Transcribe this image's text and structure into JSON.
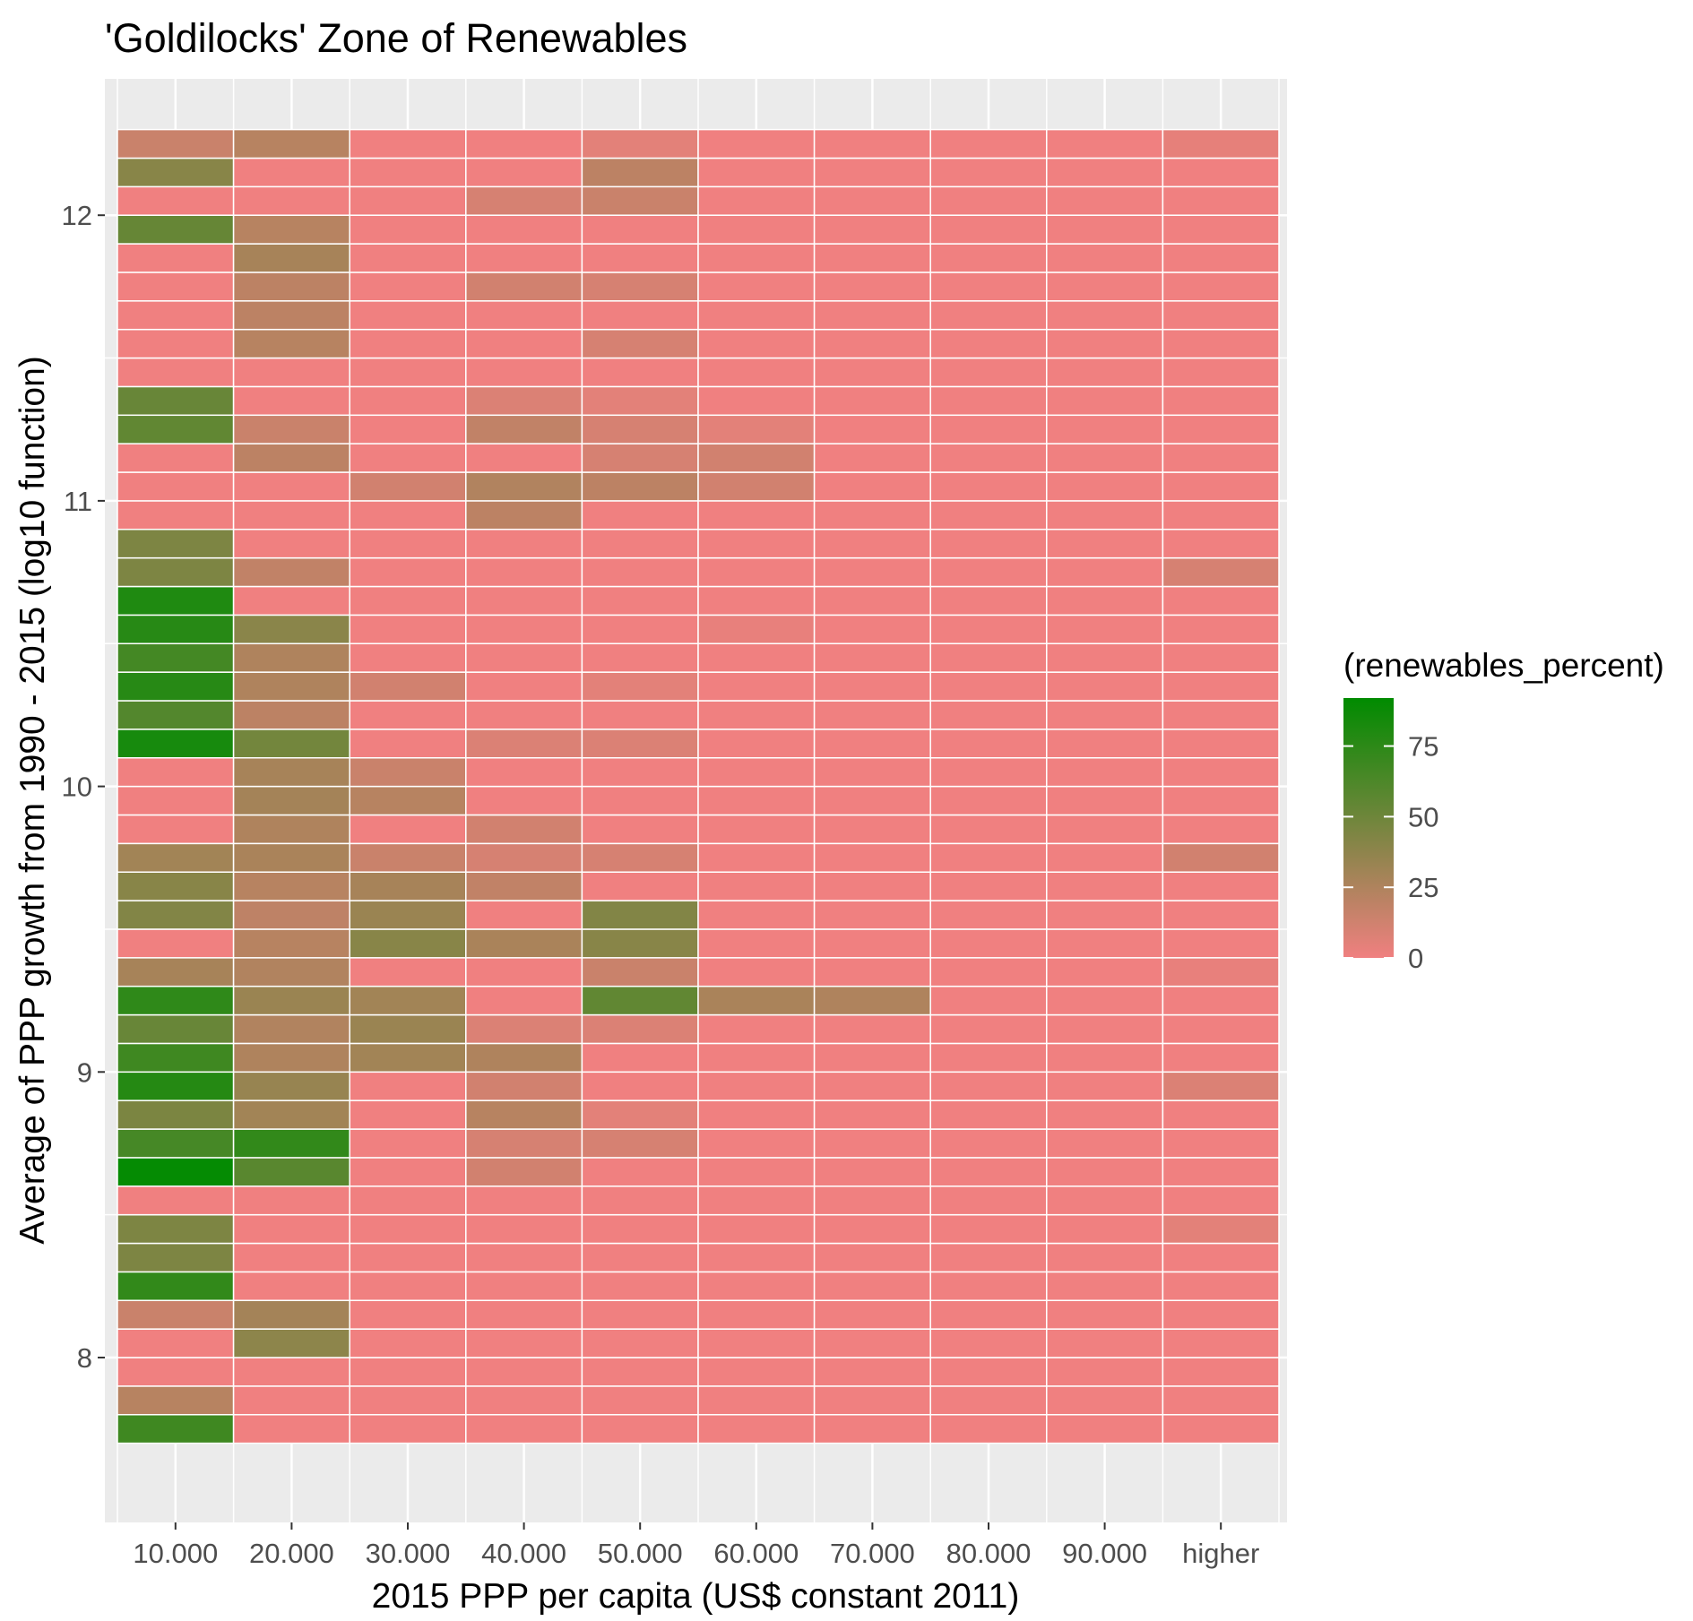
{
  "chart_data": {
    "type": "heatmap",
    "title": "'Goldilocks' Zone of Renewables",
    "xlabel": "2015 PPP per capita (US$ constant 2011)",
    "ylabel": "Average of PPP growth from 1990 - 2015 (log10 function)",
    "x_categories": [
      "10.000",
      "20.000",
      "30.000",
      "40.000",
      "50.000",
      "60.000",
      "70.000",
      "80.000",
      "90.000",
      "higher"
    ],
    "y_ticks": [
      8,
      9,
      10,
      11,
      12
    ],
    "ylim": [
      7.52,
      12.5
    ],
    "y_rows_bottom": 7.7,
    "y_row_height": 0.1,
    "grid": true,
    "legend": {
      "title": "(renewables_percent)",
      "position": "right",
      "ticks": [
        0,
        25,
        50,
        75
      ],
      "min": 0,
      "max": 92,
      "low_color": "#F08080",
      "high_color": "#008B00"
    },
    "cells": [
      [
        0,
        0,
        68
      ],
      [
        0,
        1,
        22
      ],
      [
        0,
        4,
        15
      ],
      [
        0,
        5,
        73
      ],
      [
        0,
        6,
        44
      ],
      [
        0,
        7,
        44
      ],
      [
        0,
        9,
        90
      ],
      [
        0,
        10,
        65
      ],
      [
        0,
        11,
        45
      ],
      [
        0,
        12,
        78
      ],
      [
        0,
        13,
        68
      ],
      [
        0,
        14,
        52
      ],
      [
        0,
        15,
        74
      ],
      [
        0,
        16,
        28
      ],
      [
        0,
        18,
        42
      ],
      [
        0,
        19,
        40
      ],
      [
        0,
        20,
        30
      ],
      [
        0,
        24,
        83
      ],
      [
        0,
        25,
        60
      ],
      [
        0,
        26,
        77
      ],
      [
        0,
        27,
        66
      ],
      [
        0,
        28,
        77
      ],
      [
        0,
        29,
        80
      ],
      [
        0,
        30,
        44
      ],
      [
        0,
        31,
        44
      ],
      [
        0,
        35,
        55
      ],
      [
        0,
        36,
        52
      ],
      [
        0,
        42,
        53
      ],
      [
        0,
        44,
        40
      ],
      [
        0,
        45,
        15
      ],
      [
        1,
        3,
        38
      ],
      [
        1,
        4,
        29
      ],
      [
        1,
        9,
        58
      ],
      [
        1,
        10,
        73
      ],
      [
        1,
        11,
        30
      ],
      [
        1,
        12,
        34
      ],
      [
        1,
        13,
        25
      ],
      [
        1,
        14,
        24
      ],
      [
        1,
        15,
        33
      ],
      [
        1,
        16,
        24
      ],
      [
        1,
        17,
        22
      ],
      [
        1,
        18,
        19
      ],
      [
        1,
        19,
        22
      ],
      [
        1,
        20,
        27
      ],
      [
        1,
        21,
        25
      ],
      [
        1,
        22,
        29
      ],
      [
        1,
        23,
        28
      ],
      [
        1,
        24,
        48
      ],
      [
        1,
        25,
        20
      ],
      [
        1,
        26,
        25
      ],
      [
        1,
        27,
        25
      ],
      [
        1,
        28,
        39
      ],
      [
        1,
        30,
        18
      ],
      [
        1,
        34,
        20
      ],
      [
        1,
        35,
        15
      ],
      [
        1,
        38,
        22
      ],
      [
        1,
        39,
        20
      ],
      [
        1,
        40,
        20
      ],
      [
        1,
        41,
        28
      ],
      [
        1,
        42,
        22
      ],
      [
        1,
        45,
        22
      ],
      [
        2,
        13,
        30
      ],
      [
        2,
        14,
        33
      ],
      [
        2,
        15,
        30
      ],
      [
        2,
        17,
        40
      ],
      [
        2,
        18,
        33
      ],
      [
        2,
        19,
        28
      ],
      [
        2,
        20,
        15
      ],
      [
        2,
        22,
        22
      ],
      [
        2,
        23,
        15
      ],
      [
        2,
        26,
        12
      ],
      [
        2,
        33,
        12
      ],
      [
        3,
        9,
        12
      ],
      [
        3,
        10,
        10
      ],
      [
        3,
        11,
        22
      ],
      [
        3,
        12,
        12
      ],
      [
        3,
        13,
        25
      ],
      [
        3,
        14,
        8
      ],
      [
        3,
        17,
        27
      ],
      [
        3,
        19,
        18
      ],
      [
        3,
        20,
        10
      ],
      [
        3,
        21,
        12
      ],
      [
        3,
        24,
        8
      ],
      [
        3,
        32,
        20
      ],
      [
        3,
        33,
        24
      ],
      [
        3,
        35,
        18
      ],
      [
        3,
        36,
        8
      ],
      [
        3,
        40,
        12
      ],
      [
        3,
        43,
        10
      ],
      [
        4,
        10,
        10
      ],
      [
        4,
        11,
        5
      ],
      [
        4,
        14,
        8
      ],
      [
        4,
        15,
        55
      ],
      [
        4,
        16,
        15
      ],
      [
        4,
        17,
        40
      ],
      [
        4,
        18,
        42
      ],
      [
        4,
        20,
        10
      ],
      [
        4,
        24,
        8
      ],
      [
        4,
        26,
        5
      ],
      [
        4,
        33,
        20
      ],
      [
        4,
        34,
        10
      ],
      [
        4,
        35,
        10
      ],
      [
        4,
        36,
        5
      ],
      [
        4,
        38,
        10
      ],
      [
        4,
        40,
        10
      ],
      [
        4,
        43,
        15
      ],
      [
        4,
        44,
        20
      ],
      [
        4,
        45,
        5
      ],
      [
        5,
        33,
        12
      ],
      [
        5,
        34,
        12
      ],
      [
        5,
        15,
        27
      ],
      [
        5,
        28,
        3
      ],
      [
        5,
        35,
        5
      ],
      [
        6,
        15,
        25
      ],
      [
        9,
        16,
        3
      ],
      [
        9,
        7,
        5
      ],
      [
        9,
        12,
        8
      ],
      [
        9,
        20,
        12
      ],
      [
        9,
        30,
        10
      ],
      [
        9,
        45,
        4
      ]
    ]
  }
}
